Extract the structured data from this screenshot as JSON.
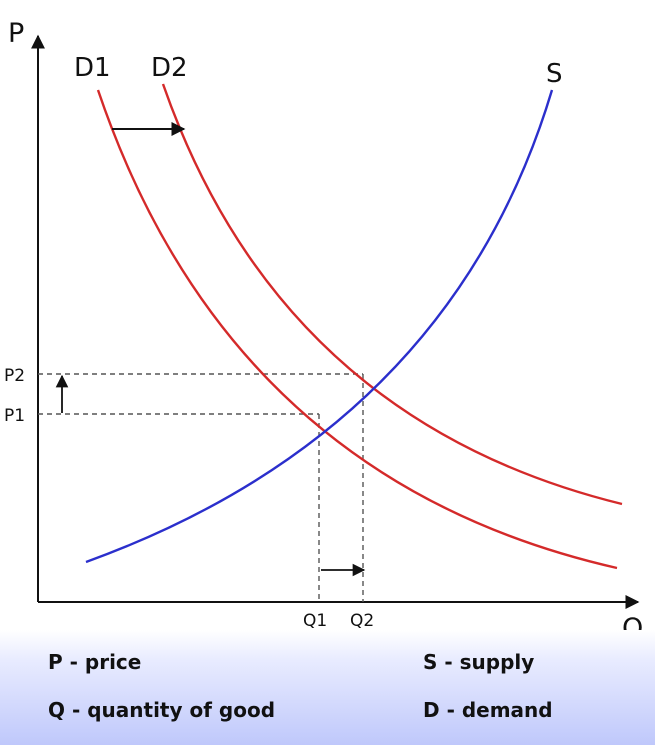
{
  "axes": {
    "y_label": "P",
    "x_label": "Q"
  },
  "curves": {
    "d1_label": "D1",
    "d2_label": "D2",
    "s_label": "S"
  },
  "ticks": {
    "p1": "P1",
    "p2": "P2",
    "q1": "Q1",
    "q2": "Q2"
  },
  "colors": {
    "demand": "#d42a2a",
    "supply": "#2b2fcc",
    "axis": "#111111",
    "guide": "#555555"
  },
  "legend": [
    {
      "text": "P - price"
    },
    {
      "text": "Q - quantity of good"
    },
    {
      "text": "S - supply"
    },
    {
      "text": "D - demand"
    }
  ]
}
